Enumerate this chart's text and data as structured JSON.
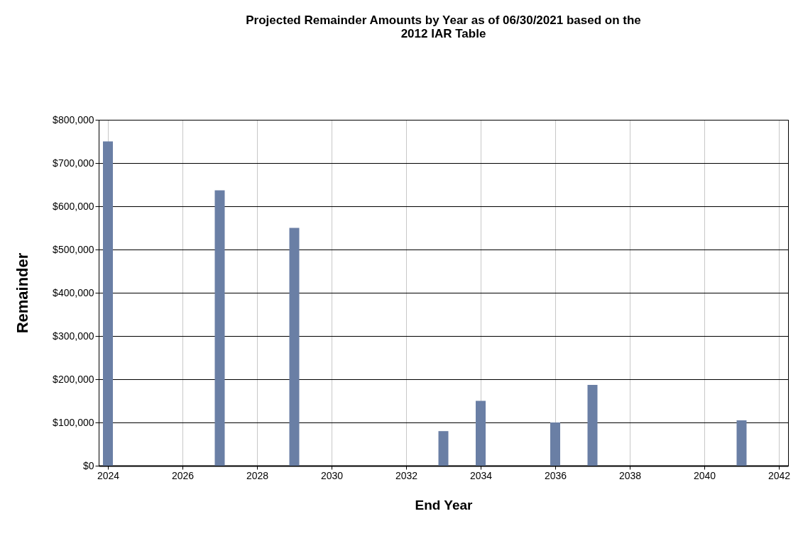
{
  "chart_data": {
    "type": "bar",
    "title": "Projected Remainder Amounts by Year as of 06/30/2021 based on the\n2012 IAR Table",
    "xlabel": "End Year",
    "ylabel": "Remainder",
    "x": [
      2024,
      2027,
      2029,
      2033,
      2034,
      2036,
      2037,
      2041
    ],
    "values": [
      750000,
      637000,
      550000,
      80000,
      150000,
      100000,
      187000,
      105000
    ],
    "color": "#6a7fa5",
    "xlim": [
      2024,
      2042
    ],
    "xticks": [
      2024,
      2026,
      2028,
      2030,
      2032,
      2034,
      2036,
      2038,
      2040,
      2042
    ],
    "ylim": [
      0,
      800000
    ],
    "yticks": [
      {
        "value": 0,
        "label": "$0"
      },
      {
        "value": 100000,
        "label": "$100,000"
      },
      {
        "value": 200000,
        "label": "$200,000"
      },
      {
        "value": 300000,
        "label": "$300,000"
      },
      {
        "value": 400000,
        "label": "$400,000"
      },
      {
        "value": 500000,
        "label": "$500,000"
      },
      {
        "value": 600000,
        "label": "$600,000"
      },
      {
        "value": 700000,
        "label": "$700,000"
      },
      {
        "value": 800000,
        "label": "$800,000"
      }
    ],
    "grid": true
  }
}
